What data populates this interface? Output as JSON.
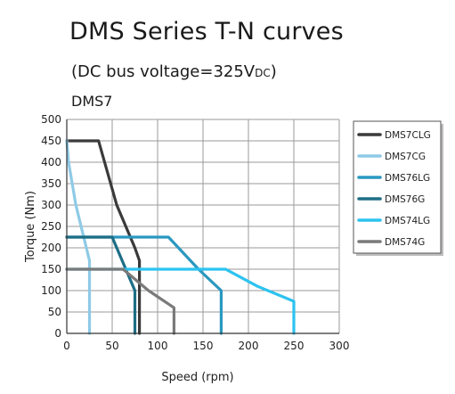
{
  "header": {
    "title": "DMS Series T-N curves",
    "subtitle_main": "(DC bus voltage=325V",
    "subtitle_unit": "DC",
    "subtitle_close": ")",
    "model": "DMS7"
  },
  "chart_data": {
    "type": "line",
    "xlabel": "Speed (rpm)",
    "ylabel": "Torque (Nm)",
    "xlim": [
      0,
      300
    ],
    "ylim": [
      0,
      500
    ],
    "xticks": [
      0,
      50,
      100,
      150,
      200,
      250,
      300
    ],
    "yticks": [
      0,
      50,
      100,
      150,
      200,
      250,
      300,
      350,
      400,
      450,
      500
    ],
    "grid": true,
    "legend_position": "right",
    "series": [
      {
        "name": "DMS7CLG",
        "color": "#3a3a3a",
        "x": [
          0,
          35,
          55,
          75,
          80,
          80
        ],
        "y": [
          450,
          450,
          300,
          200,
          170,
          0
        ]
      },
      {
        "name": "DMS7CG",
        "color": "#8ecae6",
        "x": [
          0,
          2,
          10,
          25,
          25
        ],
        "y": [
          450,
          400,
          300,
          170,
          0
        ]
      },
      {
        "name": "DMS76LG",
        "color": "#2a98c0",
        "x": [
          0,
          112,
          145,
          170,
          170
        ],
        "y": [
          225,
          225,
          150,
          100,
          0
        ]
      },
      {
        "name": "DMS76G",
        "color": "#1d6e86",
        "x": [
          0,
          50,
          65,
          75,
          75
        ],
        "y": [
          225,
          225,
          150,
          100,
          0
        ]
      },
      {
        "name": "DMS74LG",
        "color": "#2cc3f0",
        "x": [
          0,
          175,
          210,
          250,
          250
        ],
        "y": [
          150,
          150,
          110,
          75,
          0
        ]
      },
      {
        "name": "DMS74G",
        "color": "#7a7a7a",
        "x": [
          0,
          62,
          90,
          118,
          118
        ],
        "y": [
          150,
          150,
          100,
          60,
          0
        ]
      }
    ]
  }
}
